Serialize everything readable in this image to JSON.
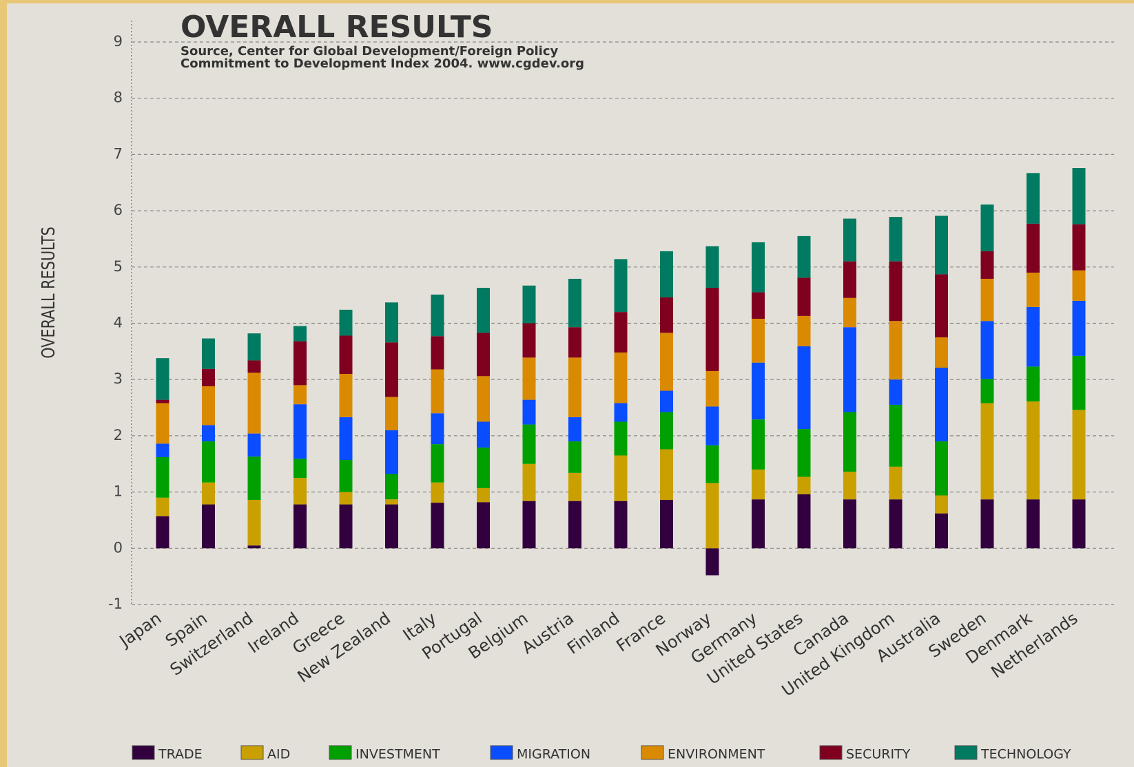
{
  "chart_data": {
    "type": "stacked_bar",
    "title": "OVERALL RESULTS",
    "subtitle": [
      "Source, Center for Global Development/Foreign Policy",
      "Commitment to Development Index 2004. www.cgdev.org"
    ],
    "y_label": "OVERALL RESULTS",
    "categories": [
      "Japan",
      "Spain",
      "Switzerland",
      "Ireland",
      "Greece",
      "New Zealand",
      "Italy",
      "Portugal",
      "Belgium",
      "Austria",
      "Finland",
      "France",
      "Norway",
      "Germany",
      "United States",
      "Canada",
      "United Kingdom",
      "Australia",
      "Sweden",
      "Denmark",
      "Netherlands"
    ],
    "series": [
      {
        "name": "TRADE",
        "color": "#33003f",
        "values": [
          0.57,
          0.78,
          0.05,
          0.78,
          0.78,
          0.78,
          0.81,
          0.82,
          0.84,
          0.84,
          0.84,
          0.86,
          -0.48,
          0.87,
          0.96,
          0.87,
          0.87,
          0.62,
          0.87,
          0.87,
          0.87
        ]
      },
      {
        "name": "AID",
        "color": "#c9a000",
        "values": [
          0.33,
          0.39,
          0.81,
          0.47,
          0.22,
          0.09,
          0.36,
          0.25,
          0.66,
          0.5,
          0.81,
          0.9,
          1.16,
          0.53,
          0.31,
          0.49,
          0.58,
          0.32,
          1.71,
          1.74,
          1.59
        ]
      },
      {
        "name": "INVESTMENT",
        "color": "#00a000",
        "values": [
          0.72,
          0.73,
          0.77,
          0.34,
          0.57,
          0.45,
          0.68,
          0.72,
          0.7,
          0.56,
          0.6,
          0.66,
          0.67,
          0.89,
          0.85,
          1.06,
          1.1,
          0.96,
          0.43,
          0.62,
          0.96
        ]
      },
      {
        "name": "MIGRATION",
        "color": "#0a4dff",
        "values": [
          0.24,
          0.29,
          0.41,
          0.97,
          0.76,
          0.78,
          0.55,
          0.46,
          0.44,
          0.43,
          0.33,
          0.38,
          0.69,
          1.01,
          1.47,
          1.51,
          0.45,
          1.31,
          1.03,
          1.06,
          0.98
        ]
      },
      {
        "name": "ENVIRONMENT",
        "color": "#d98a00",
        "values": [
          0.72,
          0.69,
          1.08,
          0.34,
          0.77,
          0.59,
          0.78,
          0.81,
          0.75,
          1.06,
          0.9,
          1.03,
          0.63,
          0.78,
          0.54,
          0.52,
          1.04,
          0.54,
          0.75,
          0.61,
          0.54
        ]
      },
      {
        "name": "SECURITY",
        "color": "#800020",
        "values": [
          0.06,
          0.31,
          0.22,
          0.78,
          0.68,
          0.97,
          0.59,
          0.77,
          0.61,
          0.54,
          0.72,
          0.63,
          1.48,
          0.47,
          0.68,
          0.65,
          1.06,
          1.12,
          0.49,
          0.87,
          0.82
        ]
      },
      {
        "name": "TECHNOLOGY",
        "color": "#007a60",
        "values": [
          0.74,
          0.54,
          0.48,
          0.27,
          0.46,
          0.71,
          0.74,
          0.8,
          0.67,
          0.86,
          0.94,
          0.82,
          0.74,
          0.89,
          0.74,
          0.76,
          0.79,
          1.04,
          0.83,
          0.9,
          1.0
        ]
      }
    ],
    "ylim": [
      -1,
      9
    ],
    "yticks": [
      -1,
      0,
      1,
      2,
      3,
      4,
      5,
      6,
      7,
      8,
      9
    ],
    "grid": true
  }
}
